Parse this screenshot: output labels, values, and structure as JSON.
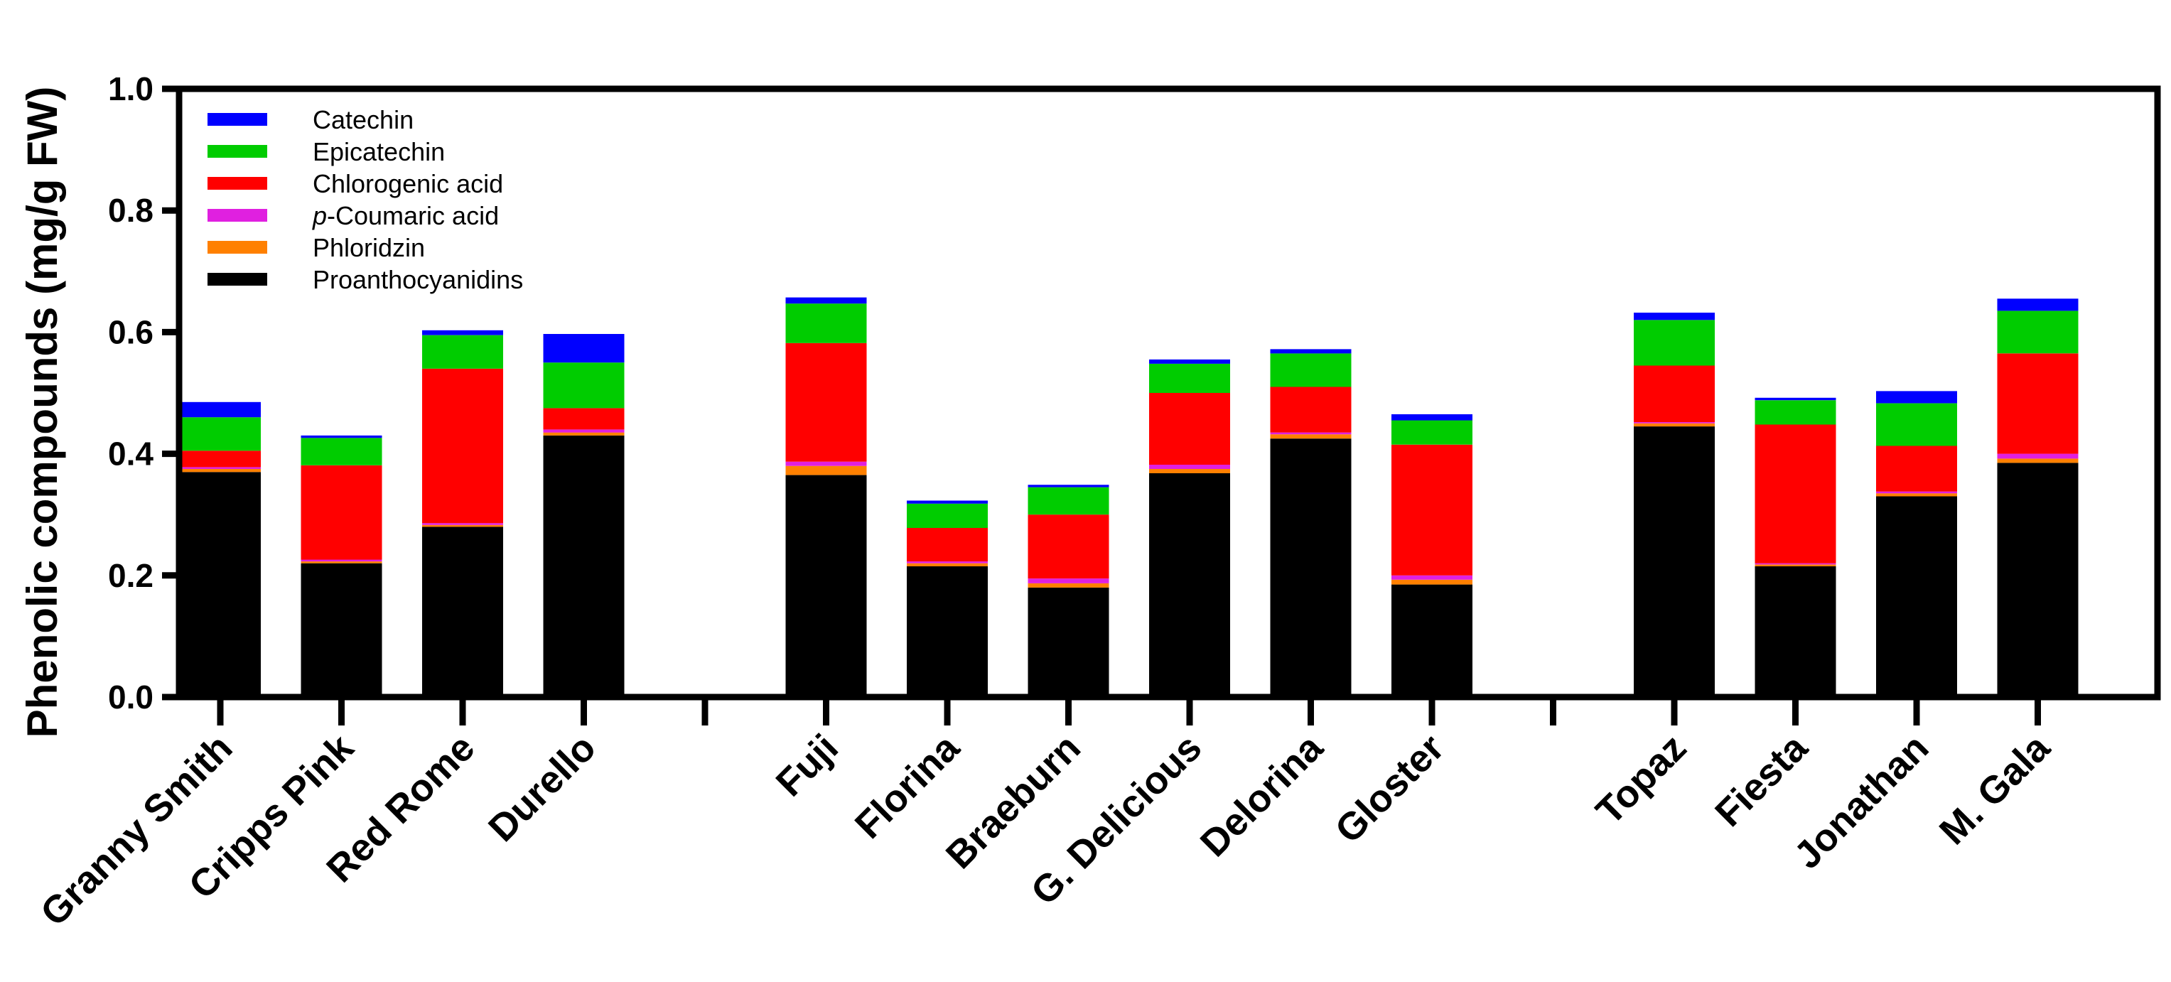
{
  "chart_data": {
    "type": "bar",
    "stacked": true,
    "ylabel": "Phenolic compounds (mg/g FW)",
    "ylim": [
      0,
      1.0
    ],
    "yticks": [
      "0.0",
      "0.2",
      "0.4",
      "0.6",
      "0.8",
      "1.0"
    ],
    "grid": false,
    "legend_position": "top-left",
    "category_groups": [
      4,
      6,
      4
    ],
    "categories": [
      "Granny Smith",
      "Cripps Pink",
      "Red Rome",
      "Durello",
      "Fuji",
      "Florina",
      "Braeburn",
      "G. Delicious",
      "Delorina",
      "Gloster",
      "Topaz",
      "Fiesta",
      "Jonathan",
      "M. Gala"
    ],
    "series": [
      {
        "name": "Proanthocyanidins",
        "color": "#000000",
        "values": [
          0.37,
          0.22,
          0.28,
          0.43,
          0.365,
          0.215,
          0.18,
          0.368,
          0.425,
          0.185,
          0.445,
          0.215,
          0.33,
          0.385
        ]
      },
      {
        "name": "Phloridzin",
        "color": "#ff8000",
        "values": [
          0.005,
          0.003,
          0.003,
          0.005,
          0.015,
          0.005,
          0.007,
          0.007,
          0.007,
          0.008,
          0.005,
          0.003,
          0.005,
          0.007
        ]
      },
      {
        "name": "p-Coumaric acid",
        "color": "#e020e0",
        "values": [
          0.003,
          0.003,
          0.003,
          0.005,
          0.007,
          0.003,
          0.008,
          0.007,
          0.003,
          0.007,
          0.002,
          0.002,
          0.003,
          0.008
        ]
      },
      {
        "name": "Chlorogenic acid",
        "color": "#ff0000",
        "values": [
          0.027,
          0.155,
          0.254,
          0.035,
          0.195,
          0.055,
          0.105,
          0.118,
          0.075,
          0.215,
          0.093,
          0.228,
          0.075,
          0.165
        ]
      },
      {
        "name": "Epicatechin",
        "color": "#00cc00",
        "values": [
          0.055,
          0.045,
          0.055,
          0.075,
          0.065,
          0.04,
          0.045,
          0.048,
          0.055,
          0.04,
          0.075,
          0.04,
          0.07,
          0.07
        ]
      },
      {
        "name": "Catechin",
        "color": "#0000ff",
        "values": [
          0.025,
          0.004,
          0.008,
          0.047,
          0.01,
          0.005,
          0.004,
          0.007,
          0.007,
          0.01,
          0.012,
          0.004,
          0.02,
          0.02
        ]
      }
    ]
  },
  "legend": {
    "items": [
      {
        "label": "Catechin",
        "color": "#0000ff"
      },
      {
        "label": "Epicatechin",
        "color": "#00cc00"
      },
      {
        "label": "Chlorogenic acid",
        "color": "#ff0000"
      },
      {
        "label_italic": "p",
        "label_rest": "-Coumaric acid",
        "color": "#e020e0"
      },
      {
        "label": "Phloridzin",
        "color": "#ff8000"
      },
      {
        "label": "Proanthocyanidins",
        "color": "#000000"
      }
    ]
  }
}
